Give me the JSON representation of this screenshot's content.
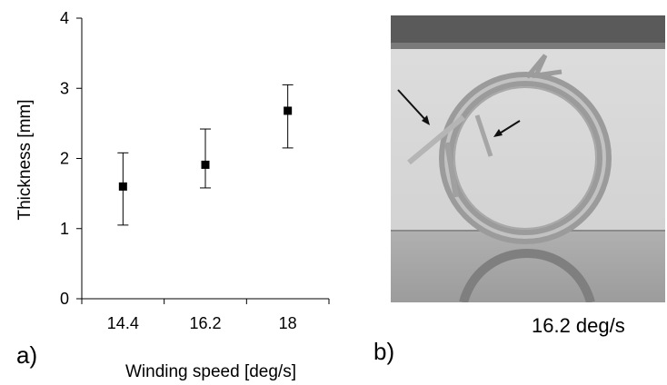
{
  "chart_data": {
    "type": "scatter",
    "xlabel": "Winding speed [deg/s]",
    "ylabel": "Thickness [mm]",
    "categories": [
      "14.4",
      "16.2",
      "18"
    ],
    "ylim": [
      0,
      4
    ],
    "yticks": [
      "0",
      "1",
      "2",
      "3",
      "4"
    ],
    "grid": false,
    "legend": "none",
    "points": [
      {
        "x": "14.4",
        "y": 1.6,
        "err_low": 1.05,
        "err_high": 2.08
      },
      {
        "x": "16.2",
        "y": 1.91,
        "err_low": 1.58,
        "err_high": 2.42
      },
      {
        "x": "18",
        "y": 2.68,
        "err_low": 2.15,
        "err_high": 3.05
      }
    ]
  },
  "panels": {
    "a_label": "a)",
    "b_label": "b)",
    "photo_caption": "16.2 deg/s"
  },
  "photo": {
    "subject": "wound ring specimen with arrows",
    "colors": {
      "background": "#d6d6d6",
      "ring": "#9a9a9a",
      "clamp": "#555555"
    }
  }
}
